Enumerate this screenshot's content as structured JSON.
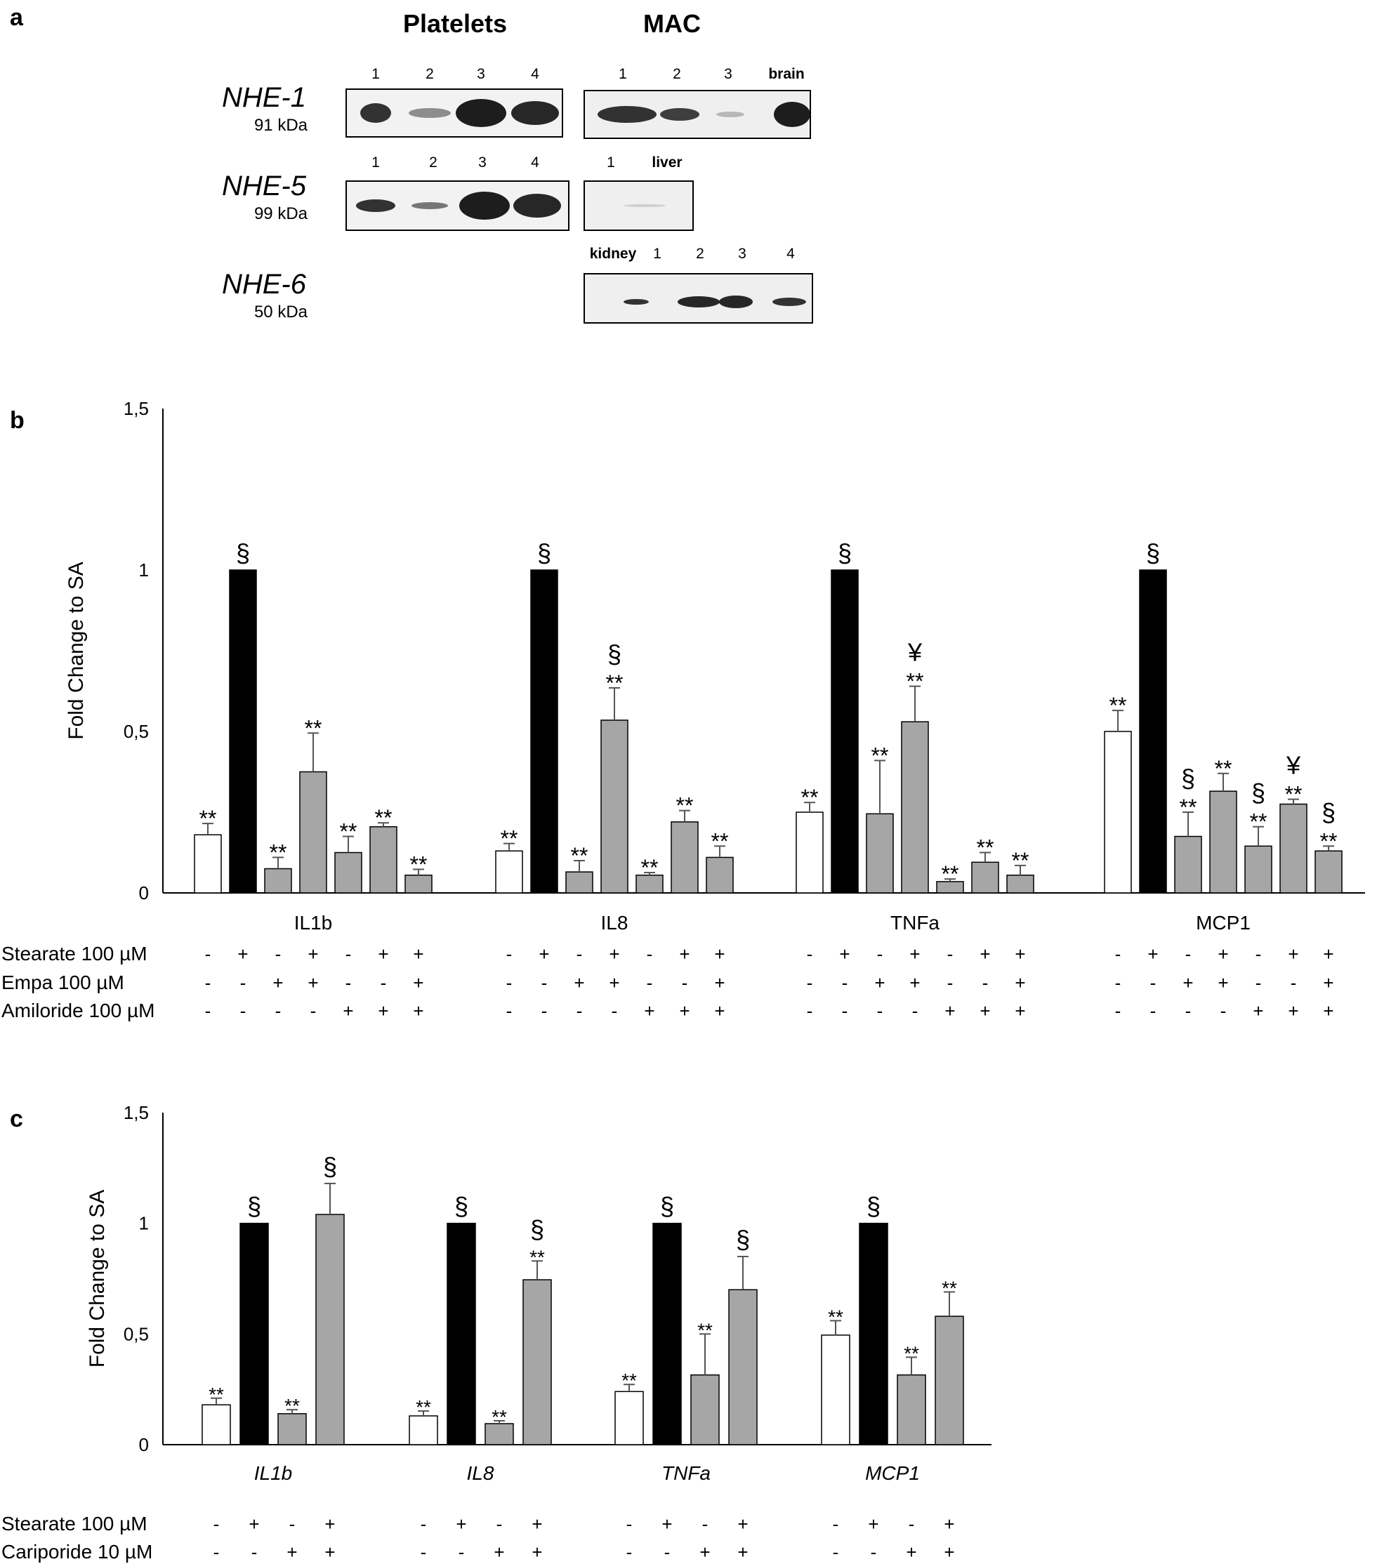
{
  "panel_a": {
    "letter": "a",
    "platelets_title": "Platelets",
    "mac_title": "MAC",
    "kda_suffix": "kDa",
    "rows": [
      {
        "protein": "NHE-1",
        "kda": "91",
        "platelet_lanes": [
          "1",
          "2",
          "3",
          "4"
        ],
        "mac_lanes": [
          "1",
          "2",
          "3",
          "brain"
        ]
      },
      {
        "protein": "NHE-5",
        "kda": "99",
        "platelet_lanes": [
          "1",
          "2",
          "3",
          "4"
        ],
        "mac_lanes": [
          "1",
          "liver"
        ]
      },
      {
        "protein": "NHE-6",
        "kda": "50",
        "platelet_lanes": [],
        "mac_lanes": [
          "kidney",
          "1",
          "2",
          "3",
          "4"
        ]
      }
    ]
  },
  "chart_data": [
    {
      "panel": "b",
      "type": "bar",
      "ylabel": "Fold Change to SA",
      "ylim": [
        0,
        1.5
      ],
      "yticks": [
        "0",
        "0,5",
        "1",
        "1,5"
      ],
      "groups": [
        {
          "name": "IL1b",
          "italic": false,
          "bars": [
            {
              "v": 0.18,
              "e": 0.035,
              "fill": "white",
              "ann": [
                "**"
              ]
            },
            {
              "v": 1.0,
              "e": 0,
              "fill": "black",
              "ann": [
                "§"
              ]
            },
            {
              "v": 0.075,
              "e": 0.035,
              "fill": "gray",
              "ann": [
                "**"
              ]
            },
            {
              "v": 0.375,
              "e": 0.12,
              "fill": "gray",
              "ann": [
                "**"
              ]
            },
            {
              "v": 0.125,
              "e": 0.05,
              "fill": "gray",
              "ann": [
                "**"
              ]
            },
            {
              "v": 0.205,
              "e": 0.012,
              "fill": "gray",
              "ann": [
                "**"
              ]
            },
            {
              "v": 0.055,
              "e": 0.018,
              "fill": "gray",
              "ann": [
                "**"
              ]
            }
          ]
        },
        {
          "name": "IL8",
          "italic": false,
          "bars": [
            {
              "v": 0.13,
              "e": 0.023,
              "fill": "white",
              "ann": [
                "**"
              ]
            },
            {
              "v": 1.0,
              "e": 0,
              "fill": "black",
              "ann": [
                "§"
              ]
            },
            {
              "v": 0.065,
              "e": 0.035,
              "fill": "gray",
              "ann": [
                "**"
              ]
            },
            {
              "v": 0.535,
              "e": 0.1,
              "fill": "gray",
              "ann": [
                "§",
                "**"
              ]
            },
            {
              "v": 0.055,
              "e": 0.008,
              "fill": "gray",
              "ann": [
                "**"
              ]
            },
            {
              "v": 0.22,
              "e": 0.035,
              "fill": "gray",
              "ann": [
                "**"
              ]
            },
            {
              "v": 0.11,
              "e": 0.035,
              "fill": "gray",
              "ann": [
                "**"
              ]
            }
          ]
        },
        {
          "name": "TNFa",
          "italic": false,
          "bars": [
            {
              "v": 0.25,
              "e": 0.03,
              "fill": "white",
              "ann": [
                "**"
              ]
            },
            {
              "v": 1.0,
              "e": 0,
              "fill": "black",
              "ann": [
                "§"
              ]
            },
            {
              "v": 0.245,
              "e": 0.165,
              "fill": "gray",
              "ann": [
                "**"
              ]
            },
            {
              "v": 0.53,
              "e": 0.11,
              "fill": "gray",
              "ann": [
                "¥",
                "**"
              ]
            },
            {
              "v": 0.035,
              "e": 0.008,
              "fill": "gray",
              "ann": [
                "**"
              ]
            },
            {
              "v": 0.095,
              "e": 0.03,
              "fill": "gray",
              "ann": [
                "**"
              ]
            },
            {
              "v": 0.055,
              "e": 0.03,
              "fill": "gray",
              "ann": [
                "**"
              ]
            }
          ]
        },
        {
          "name": "MCP1",
          "italic": false,
          "bars": [
            {
              "v": 0.5,
              "e": 0.065,
              "fill": "white",
              "ann": [
                "**"
              ]
            },
            {
              "v": 1.0,
              "e": 0,
              "fill": "black",
              "ann": [
                "§"
              ]
            },
            {
              "v": 0.175,
              "e": 0.075,
              "fill": "gray",
              "ann": [
                "§",
                "**"
              ]
            },
            {
              "v": 0.315,
              "e": 0.055,
              "fill": "gray",
              "ann": [
                "**"
              ]
            },
            {
              "v": 0.145,
              "e": 0.06,
              "fill": "gray",
              "ann": [
                "§",
                "**"
              ]
            },
            {
              "v": 0.275,
              "e": 0.015,
              "fill": "gray",
              "ann": [
                "¥",
                "**"
              ]
            },
            {
              "v": 0.13,
              "e": 0.015,
              "fill": "gray",
              "ann": [
                "§",
                "**"
              ]
            }
          ]
        }
      ],
      "treatments": [
        {
          "label": "Stearate 100 µM",
          "signs": [
            "-",
            "+",
            "-",
            "+",
            "-",
            "+",
            "+"
          ]
        },
        {
          "label": "Empa 100 µM",
          "signs": [
            "-",
            "-",
            "+",
            "+",
            "-",
            "-",
            "+"
          ]
        },
        {
          "label": "Amiloride 100 µM",
          "signs": [
            "-",
            "-",
            "-",
            "-",
            "+",
            "+",
            "+"
          ]
        }
      ]
    },
    {
      "panel": "c",
      "type": "bar",
      "ylabel": "Fold Change to SA",
      "ylim": [
        0,
        1.5
      ],
      "yticks": [
        "0",
        "0,5",
        "1",
        "1,5"
      ],
      "groups": [
        {
          "name": "IL1b",
          "italic": true,
          "bars": [
            {
              "v": 0.18,
              "e": 0.03,
              "fill": "white",
              "ann": [
                "**"
              ]
            },
            {
              "v": 1.0,
              "e": 0,
              "fill": "black",
              "ann": [
                "§"
              ]
            },
            {
              "v": 0.14,
              "e": 0.018,
              "fill": "gray",
              "ann": [
                "**"
              ]
            },
            {
              "v": 1.04,
              "e": 0.14,
              "fill": "gray",
              "ann": [
                "§"
              ]
            }
          ]
        },
        {
          "name": "IL8",
          "italic": true,
          "bars": [
            {
              "v": 0.13,
              "e": 0.022,
              "fill": "white",
              "ann": [
                "**"
              ]
            },
            {
              "v": 1.0,
              "e": 0,
              "fill": "black",
              "ann": [
                "§"
              ]
            },
            {
              "v": 0.095,
              "e": 0.013,
              "fill": "gray",
              "ann": [
                "**"
              ]
            },
            {
              "v": 0.745,
              "e": 0.085,
              "fill": "gray",
              "ann": [
                "§",
                "**"
              ]
            }
          ]
        },
        {
          "name": "TNFa",
          "italic": true,
          "bars": [
            {
              "v": 0.24,
              "e": 0.032,
              "fill": "white",
              "ann": [
                "**"
              ]
            },
            {
              "v": 1.0,
              "e": 0,
              "fill": "black",
              "ann": [
                "§"
              ]
            },
            {
              "v": 0.315,
              "e": 0.185,
              "fill": "gray",
              "ann": [
                "**"
              ]
            },
            {
              "v": 0.7,
              "e": 0.15,
              "fill": "gray",
              "ann": [
                "§"
              ]
            }
          ]
        },
        {
          "name": "MCP1",
          "italic": true,
          "bars": [
            {
              "v": 0.495,
              "e": 0.065,
              "fill": "white",
              "ann": [
                "**"
              ]
            },
            {
              "v": 1.0,
              "e": 0,
              "fill": "black",
              "ann": [
                "§"
              ]
            },
            {
              "v": 0.315,
              "e": 0.08,
              "fill": "gray",
              "ann": [
                "**"
              ]
            },
            {
              "v": 0.58,
              "e": 0.11,
              "fill": "gray",
              "ann": [
                "**"
              ]
            }
          ]
        }
      ],
      "treatments": [
        {
          "label": "Stearate 100 µM",
          "signs": [
            "-",
            "+",
            "-",
            "+"
          ]
        },
        {
          "label": "Cariporide 10 µM",
          "signs": [
            "-",
            "-",
            "+",
            "+"
          ]
        }
      ]
    }
  ]
}
